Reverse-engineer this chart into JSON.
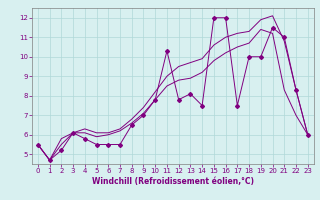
{
  "xlabel": "Windchill (Refroidissement éolien,°C)",
  "x": [
    0,
    1,
    2,
    3,
    4,
    5,
    6,
    7,
    8,
    9,
    10,
    11,
    12,
    13,
    14,
    15,
    16,
    17,
    18,
    19,
    20,
    21,
    22,
    23
  ],
  "y_zigzag": [
    5.5,
    4.7,
    5.2,
    6.1,
    5.8,
    5.5,
    5.5,
    5.5,
    6.5,
    7.0,
    7.8,
    10.3,
    7.8,
    8.1,
    7.5,
    12.0,
    12.0,
    7.5,
    10.0,
    10.0,
    11.5,
    11.0,
    8.3,
    6.0
  ],
  "y_line1": [
    5.5,
    4.7,
    5.5,
    6.1,
    6.1,
    5.9,
    6.0,
    6.2,
    6.6,
    7.1,
    7.8,
    8.5,
    8.8,
    8.9,
    9.2,
    9.8,
    10.2,
    10.5,
    10.7,
    11.4,
    11.2,
    8.3,
    7.0,
    6.0
  ],
  "y_line2": [
    5.5,
    4.7,
    5.8,
    6.1,
    6.3,
    6.1,
    6.1,
    6.3,
    6.8,
    7.4,
    8.2,
    9.0,
    9.5,
    9.7,
    9.9,
    10.6,
    11.0,
    11.2,
    11.3,
    11.9,
    12.1,
    10.8,
    8.3,
    6.0
  ],
  "line_color": "#800080",
  "bg_color": "#d8f0f0",
  "grid_color": "#b0d8d8",
  "ylim": [
    4.5,
    12.5
  ],
  "xlim": [
    -0.5,
    23.5
  ],
  "yticks": [
    5,
    6,
    7,
    8,
    9,
    10,
    11,
    12
  ],
  "xticks": [
    0,
    1,
    2,
    3,
    4,
    5,
    6,
    7,
    8,
    9,
    10,
    11,
    12,
    13,
    14,
    15,
    16,
    17,
    18,
    19,
    20,
    21,
    22,
    23
  ],
  "label_fontsize": 5.5,
  "tick_fontsize": 5.0,
  "xlabel_fontsize": 5.5,
  "lw": 0.7,
  "marker_size": 2.0
}
